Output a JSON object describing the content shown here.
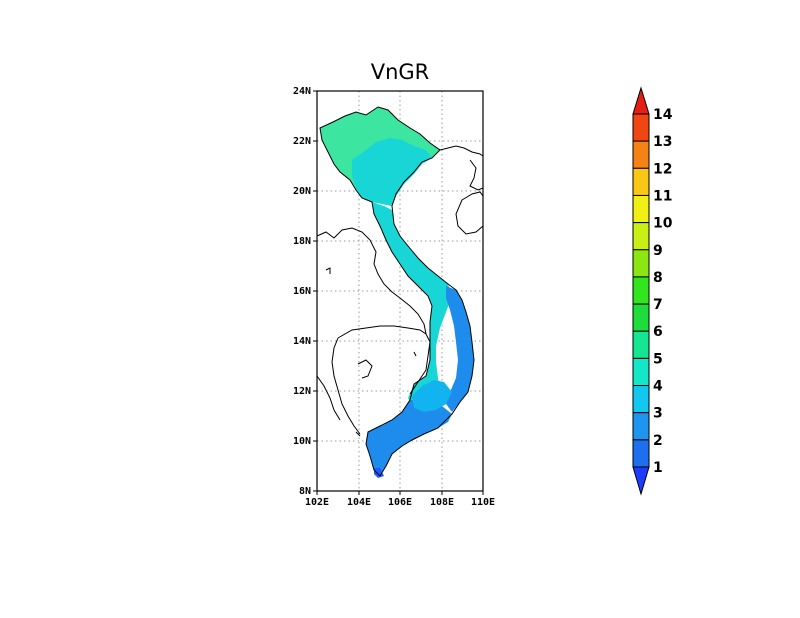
{
  "map": {
    "title": "VnGR",
    "lat_ticks": [
      "8N",
      "10N",
      "12N",
      "14N",
      "16N",
      "18N",
      "20N",
      "22N",
      "24N"
    ],
    "lon_ticks": [
      "102E",
      "104E",
      "106E",
      "108E",
      "110E"
    ],
    "lat_range": [
      8,
      24
    ],
    "lon_range": [
      102,
      110
    ],
    "grid": "dotted",
    "colors": {
      "land_light_green": "#3ce6a0",
      "land_cyan": "#19d6d6",
      "land_light_blue": "#12b4f0",
      "land_blue": "#1e8ced",
      "land_dark_blue": "#1e5aff",
      "border": "#000000"
    }
  },
  "colorbar": {
    "labels": [
      "1",
      "2",
      "3",
      "4",
      "5",
      "6",
      "7",
      "8",
      "9",
      "10",
      "11",
      "12",
      "13",
      "14"
    ],
    "colors": [
      "#1e3cff",
      "#1e6ef0",
      "#1e96f0",
      "#12c8f0",
      "#14e6c8",
      "#14e691",
      "#1edc3c",
      "#32e61e",
      "#8ce614",
      "#c8f014",
      "#f0f014",
      "#fac814",
      "#f58214",
      "#f04614",
      "#e61e14"
    ],
    "extend": "both"
  }
}
